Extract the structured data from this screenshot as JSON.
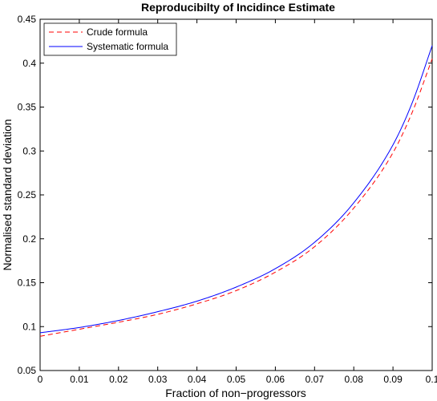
{
  "chart_data": {
    "type": "line",
    "title": "Reproducibilty of Incidince Estimate",
    "xlabel": "Fraction of non−progressors",
    "ylabel": "Normalised standard deviation",
    "xlim": [
      0,
      0.1
    ],
    "ylim": [
      0.05,
      0.45
    ],
    "xticks": [
      "0",
      "0.01",
      "0.02",
      "0.03",
      "0.04",
      "0.05",
      "0.06",
      "0.07",
      "0.08",
      "0.09",
      "0.1"
    ],
    "yticks": [
      "0.05",
      "0.1",
      "0.15",
      "0.2",
      "0.25",
      "0.3",
      "0.35",
      "0.4",
      "0.45"
    ],
    "grid": false,
    "legend_position": "top-left",
    "x": [
      0,
      0.01,
      0.02,
      0.03,
      0.04,
      0.05,
      0.06,
      0.07,
      0.08,
      0.09,
      0.095,
      0.1
    ],
    "series": [
      {
        "name": "Crude formula",
        "style": "dashed",
        "color": "#ff0000",
        "values": [
          0.089,
          0.097,
          0.105,
          0.114,
          0.126,
          0.141,
          0.162,
          0.191,
          0.235,
          0.298,
          0.345,
          0.405
        ]
      },
      {
        "name": "Systematic formula",
        "style": "solid",
        "color": "#0000ff",
        "values": [
          0.093,
          0.099,
          0.107,
          0.117,
          0.129,
          0.145,
          0.166,
          0.196,
          0.241,
          0.307,
          0.356,
          0.42
        ]
      }
    ]
  }
}
